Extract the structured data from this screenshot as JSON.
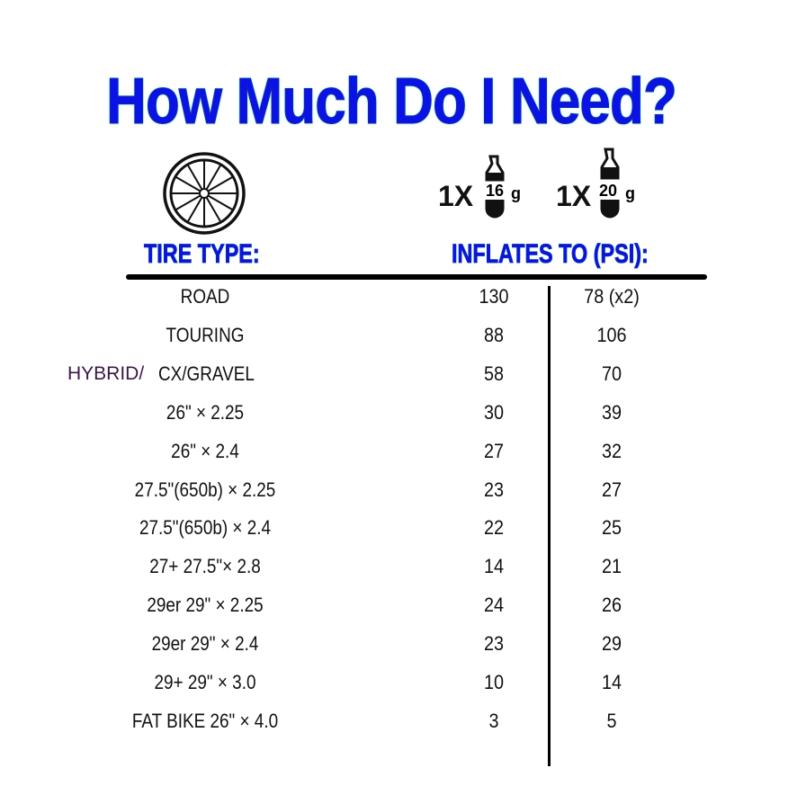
{
  "title": "How Much Do I Need?",
  "icons": {
    "wheel": "bicycle-wheel-icon",
    "cartridge": "co2-cartridge-icon"
  },
  "colors": {
    "title": "#0a12e6",
    "title_glow": "#5ef0ff",
    "hybrid_text": "#3a1848"
  },
  "cartridges": [
    {
      "qty": "1X",
      "size": "16",
      "unit": "g"
    },
    {
      "qty": "1X",
      "size": "20",
      "unit": "g"
    }
  ],
  "headers": {
    "tire_type": "TIRE TYPE:",
    "inflates_to": "INFLATES TO (PSI):"
  },
  "rows": [
    {
      "prefix": "",
      "tire": "ROAD",
      "psi16": "130",
      "psi20": "78 (x2)"
    },
    {
      "prefix": "",
      "tire": "TOURING",
      "psi16": "88",
      "psi20": "106"
    },
    {
      "prefix": "HYBRID/",
      "tire": "CX/GRAVEL",
      "psi16": "58",
      "psi20": "70"
    },
    {
      "prefix": "",
      "tire": "26\" × 2.25",
      "psi16": "30",
      "psi20": "39"
    },
    {
      "prefix": "",
      "tire": "26\" × 2.4",
      "psi16": "27",
      "psi20": "32"
    },
    {
      "prefix": "",
      "tire": "27.5\"(650b) × 2.25",
      "psi16": "23",
      "psi20": "27"
    },
    {
      "prefix": "",
      "tire": "27.5\"(650b) × 2.4",
      "psi16": "22",
      "psi20": "25"
    },
    {
      "prefix": "",
      "tire": "27+ 27.5\"× 2.8",
      "psi16": "14",
      "psi20": "21"
    },
    {
      "prefix": "",
      "tire": "29er 29\" × 2.25",
      "psi16": "24",
      "psi20": "26"
    },
    {
      "prefix": "",
      "tire": "29er 29\" × 2.4",
      "psi16": "23",
      "psi20": "29"
    },
    {
      "prefix": "",
      "tire": "29+ 29\" × 3.0",
      "psi16": "10",
      "psi20": "14"
    },
    {
      "prefix": "",
      "tire": "FAT BIKE 26\" × 4.0",
      "psi16": "3",
      "psi20": "5"
    }
  ]
}
